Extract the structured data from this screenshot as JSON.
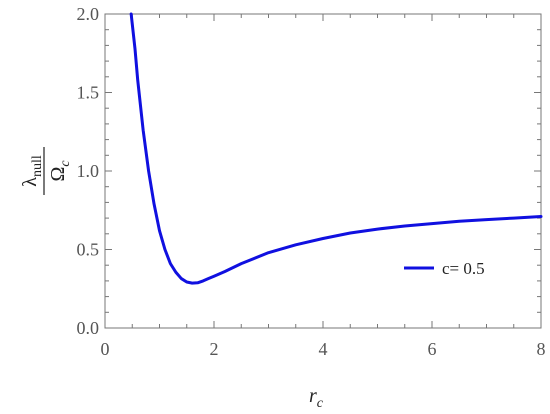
{
  "chart_data": {
    "type": "line",
    "xlabel": {
      "main": "r",
      "sub": "c"
    },
    "ylabel": {
      "num_main": "λ",
      "num_sub": "null",
      "den_main": "Ω",
      "den_sub": "c"
    },
    "xlim": [
      0,
      8
    ],
    "ylim": [
      0,
      2
    ],
    "x_ticks": [
      0,
      2,
      4,
      6,
      8
    ],
    "x_tick_labels": [
      "0",
      "2",
      "4",
      "6",
      "8"
    ],
    "y_ticks": [
      0,
      0.5,
      1,
      1.5,
      2
    ],
    "y_tick_labels": [
      "0.0",
      "0.5",
      "1.0",
      "1.5",
      "2.0"
    ],
    "grid": false,
    "legend_position": "right",
    "series": [
      {
        "name": "c= 0.5",
        "color": "#1010e0",
        "x": [
          0.48,
          0.55,
          0.6,
          0.7,
          0.8,
          0.9,
          1.0,
          1.1,
          1.2,
          1.3,
          1.4,
          1.5,
          1.6,
          1.7,
          1.8,
          1.9,
          2.0,
          2.2,
          2.5,
          3.0,
          3.5,
          4.0,
          4.5,
          5.0,
          5.5,
          6.0,
          6.5,
          7.0,
          7.5,
          8.0
        ],
        "y": [
          2.0,
          1.78,
          1.58,
          1.26,
          1.0,
          0.79,
          0.62,
          0.5,
          0.41,
          0.355,
          0.315,
          0.293,
          0.286,
          0.288,
          0.3,
          0.315,
          0.33,
          0.36,
          0.41,
          0.48,
          0.53,
          0.57,
          0.605,
          0.63,
          0.65,
          0.665,
          0.68,
          0.69,
          0.7,
          0.71
        ]
      }
    ]
  }
}
